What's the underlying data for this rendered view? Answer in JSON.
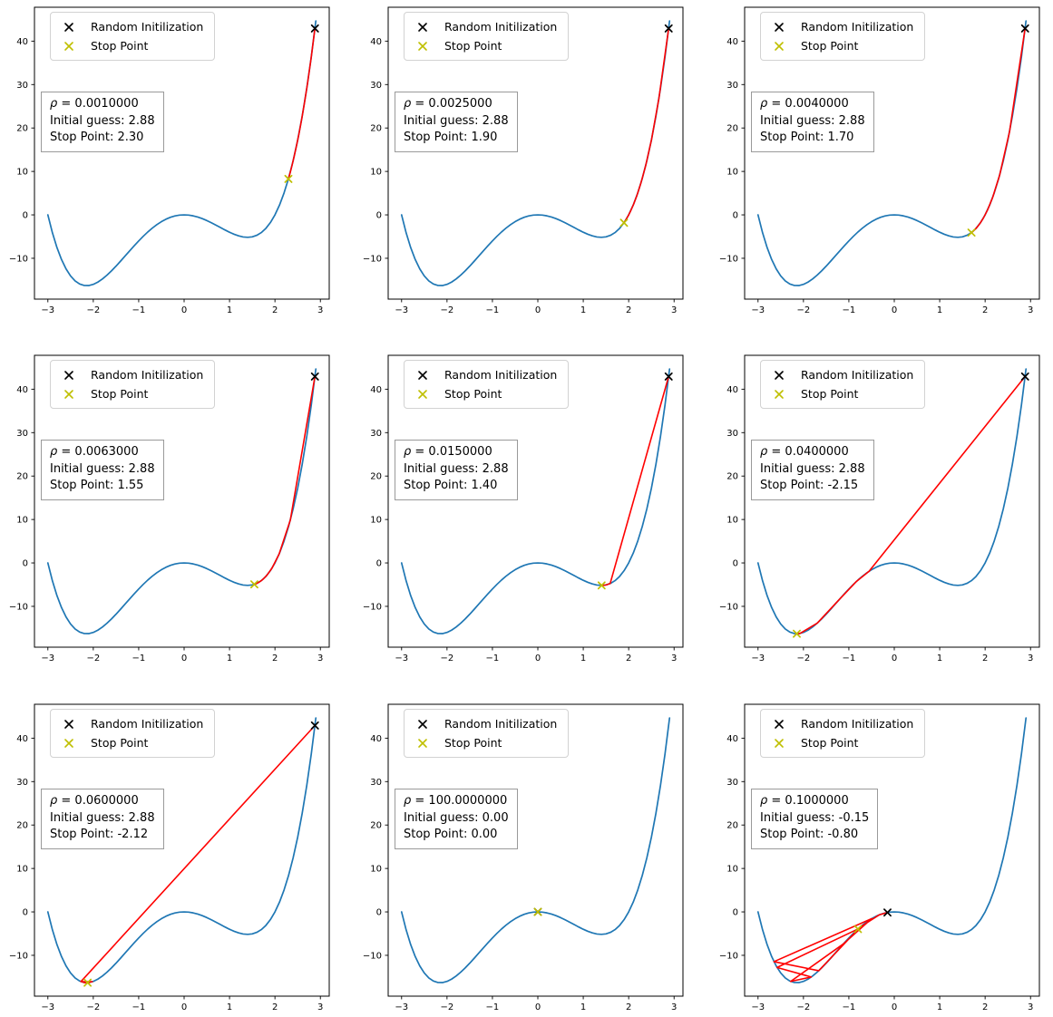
{
  "figure": {
    "background": "#ffffff"
  },
  "colors": {
    "curve": "#1f77b4",
    "descent_path": "#ff0000",
    "init_marker": "#000000",
    "stop_marker": "#bfbf00",
    "spine": "#000000",
    "tick_label": "#000000",
    "legend_border": "#d2d2d2",
    "annotation_border": "#9a9a9a"
  },
  "legend": {
    "items": [
      {
        "label": "Random Initilization",
        "marker": "x",
        "color": "#000000"
      },
      {
        "label": "Stop Point",
        "marker": "x",
        "color": "#bfbf00"
      }
    ]
  },
  "chart_data": {
    "type": "line",
    "layout": "3x3 subplots, identical axes",
    "function": "f(x) = x^4 + x^3 - 6x^2",
    "xlim": [
      -3.295,
      3.195
    ],
    "ylim": [
      -19.4,
      47.8
    ],
    "x_tick_values": [
      -3,
      -2,
      -1,
      0,
      1,
      2,
      3
    ],
    "x_tick_labels": [
      "−3",
      "−2",
      "−1",
      "0",
      "1",
      "2",
      "3"
    ],
    "y_tick_values": [
      -10,
      0,
      10,
      20,
      30,
      40
    ],
    "y_tick_labels": [
      "−10",
      "0",
      "10",
      "20",
      "30",
      "40"
    ],
    "curve_x": [
      -3,
      -2.9,
      -2.8,
      -2.7,
      -2.6,
      -2.5,
      -2.4,
      -2.3,
      -2.2,
      -2.1,
      -2,
      -1.9,
      -1.8,
      -1.7,
      -1.6,
      -1.5,
      -1.4,
      -1.3,
      -1.2,
      -1.1,
      -1,
      -0.9,
      -0.8,
      -0.7,
      -0.6,
      -0.5,
      -0.4,
      -0.3,
      -0.2,
      -0.1,
      0,
      0.1,
      0.2,
      0.3,
      0.4,
      0.5,
      0.6,
      0.7,
      0.8,
      0.9,
      1,
      1.1,
      1.2,
      1.3,
      1.4,
      1.5,
      1.6,
      1.7,
      1.8,
      1.9,
      2,
      2.1,
      2.2,
      2.3,
      2.4,
      2.5,
      2.6,
      2.7,
      2.8,
      2.9
    ],
    "curve_y": [
      0,
      -4.121,
      -7.526,
      -10.279,
      -12.438,
      -14.063,
      -15.206,
      -15.923,
      -16.262,
      -16.273,
      -16,
      -15.487,
      -14.774,
      -13.901,
      -12.902,
      -11.813,
      -10.662,
      -9.481,
      -8.294,
      -7.127,
      -6,
      -4.933,
      -3.942,
      -3.043,
      -2.246,
      -1.563,
      -0.998,
      -0.559,
      -0.246,
      -0.061,
      0,
      -0.059,
      -0.23,
      -0.505,
      -0.87,
      -1.313,
      -1.814,
      -2.357,
      -2.918,
      -3.475,
      -4,
      -4.465,
      -4.838,
      -5.087,
      -5.174,
      -5.063,
      -4.71,
      -4.075,
      -3.11,
      -1.769,
      0,
      2.249,
      5.034,
      8.411,
      12.442,
      17.188,
      22.714,
      29.087,
      36.378,
      44.657
    ],
    "plots": [
      {
        "rho": "0.0010000",
        "initial_guess": "2.88",
        "stop_point": "2.30",
        "annotation": {
          "rho_symbol": "ρ",
          "rho_rest": " = 0.0010000",
          "initial": "Initial guess: 2.88",
          "stop": "Stop Point: 2.30"
        },
        "path_x": [
          2.88,
          2.794,
          2.717,
          2.647,
          2.584,
          2.526,
          2.472,
          2.423,
          2.378,
          2.336,
          2.296
        ],
        "path_y": [
          42.92,
          35.921,
          30.254,
          25.613,
          21.757,
          18.531,
          15.802,
          13.482,
          11.488,
          9.768,
          8.276
        ],
        "init_xy": [
          2.88,
          42.92
        ],
        "stop_xy": [
          2.296,
          8.276
        ]
      },
      {
        "rho": "0.0025000",
        "initial_guess": "2.88",
        "stop_point": "1.90",
        "annotation": {
          "rho_symbol": "ρ",
          "rho_rest": " = 0.0025000",
          "initial": "Initial guess: 2.88",
          "stop": "Stop Point: 1.90"
        },
        "path_x": [
          2.88,
          2.665,
          2.503,
          2.374,
          2.269,
          2.182,
          2.108,
          2.044,
          1.989,
          1.94,
          1.897
        ],
        "path_y": [
          42.92,
          26.775,
          17.326,
          11.328,
          7.304,
          4.485,
          2.444,
          0.928,
          -0.225,
          -1.117,
          -1.817
        ],
        "init_xy": [
          2.88,
          42.92
        ],
        "stop_xy": [
          1.897,
          -1.817
        ]
      },
      {
        "rho": "0.0040000",
        "initial_guess": "2.88",
        "stop_point": "1.70",
        "annotation": {
          "rho_symbol": "ρ",
          "rho_rest": " = 0.0040000",
          "initial": "Initial guess: 2.88",
          "stop": "Stop Point: 1.70"
        },
        "path_x": [
          2.88,
          2.537,
          2.32,
          2.167,
          2.052,
          1.962,
          1.889,
          1.829,
          1.779,
          1.736,
          1.7
        ],
        "path_y": [
          42.92,
          19.11,
          9.16,
          4.049,
          1.1,
          -0.735,
          -1.941,
          -2.764,
          -3.347,
          -3.768,
          -4.079
        ],
        "init_xy": [
          2.88,
          42.92
        ],
        "stop_xy": [
          1.7,
          -4.079
        ]
      },
      {
        "rho": "0.0063000",
        "initial_guess": "2.88",
        "stop_point": "1.55",
        "annotation": {
          "rho_symbol": "ρ",
          "rho_rest": " = 0.0063000",
          "initial": "Initial guess: 2.88",
          "stop": "Stop Point: 1.55"
        },
        "path_x": [
          2.88,
          2.339,
          2.09,
          1.935,
          1.828,
          1.749,
          1.689,
          1.641,
          1.603,
          1.572,
          1.546
        ],
        "path_y": [
          42.92,
          9.902,
          2.0,
          -1.194,
          -2.772,
          -3.644,
          -4.162,
          -4.485,
          -4.697,
          -4.837,
          -4.933
        ],
        "init_xy": [
          2.88,
          42.92
        ],
        "stop_xy": [
          1.546,
          -4.933
        ]
      },
      {
        "rho": "0.0150000",
        "initial_guess": "2.88",
        "stop_point": "1.40",
        "annotation": {
          "rho_symbol": "ρ",
          "rho_rest": " = 0.0150000",
          "initial": "Initial guess: 2.88",
          "stop": "Stop Point: 1.40"
        },
        "path_x": [
          2.88,
          1.592,
          1.522,
          1.481,
          1.454,
          1.436,
          1.424,
          1.416,
          1.41,
          1.406,
          1.404
        ],
        "path_y": [
          42.92,
          -4.748,
          -5.007,
          -5.102,
          -5.141,
          -5.16,
          -5.167,
          -5.171,
          -5.173,
          -5.174,
          -5.175
        ],
        "init_xy": [
          2.88,
          42.92
        ],
        "stop_xy": [
          1.404,
          -5.175
        ]
      },
      {
        "rho": "0.0400000",
        "initial_guess": "2.88",
        "stop_point": "-2.15",
        "annotation": {
          "rho_symbol": "ρ",
          "rho_rest": " = 0.0400000",
          "initial": "Initial guess: 2.88",
          "stop": "Stop Point: -2.15"
        },
        "path_x": [
          2.88,
          -0.555,
          -0.831,
          -1.221,
          -1.695,
          -2.074,
          -2.159,
          -2.144,
          -2.148,
          -2.146,
          -2.147
        ],
        "path_y": [
          42.92,
          -1.924,
          -4.24,
          -8.543,
          -13.853,
          -16.227,
          -16.304,
          -16.306,
          -16.306,
          -16.306,
          -16.306
        ],
        "init_xy": [
          2.88,
          42.92
        ],
        "stop_xy": [
          -2.147,
          -16.306
        ]
      },
      {
        "rho": "0.0600000",
        "initial_guess": "2.88",
        "stop_point": "-2.12",
        "annotation": {
          "rho_symbol": "ρ",
          "rho_rest": " = 0.0600000",
          "initial": "Initial guess: 2.88",
          "stop": "Stop Point: -2.12"
        },
        "path_x": [
          2.88,
          -2.272,
          -2.022,
          -2.229,
          -2.07,
          -2.203,
          -2.097,
          -2.185,
          -2.114,
          -2.173,
          -2.125
        ],
        "path_y": [
          42.92,
          -16.054,
          -16.084,
          -16.199,
          -16.219,
          -16.257,
          -16.268,
          -16.284,
          -16.289,
          -16.295,
          -16.298
        ],
        "init_xy": [
          2.88,
          42.92
        ],
        "stop_xy": [
          -2.125,
          -16.298
        ]
      },
      {
        "rho": "100.0000000",
        "initial_guess": "0.00",
        "stop_point": "0.00",
        "annotation": {
          "rho_symbol": "ρ",
          "rho_rest": " = 100.0000000",
          "initial": "Initial guess: 0.00",
          "stop": "Stop Point: 0.00"
        },
        "path_x": [
          0,
          0
        ],
        "path_y": [
          0,
          0
        ],
        "init_xy": [
          0,
          0
        ],
        "stop_xy": [
          0,
          0
        ]
      },
      {
        "rho": "0.1000000",
        "initial_guess": "-0.15",
        "stop_point": "-0.80",
        "annotation": {
          "rho_symbol": "ρ",
          "rho_rest": " = 0.1000000",
          "initial": "Initial guess: -0.15",
          "stop": "Stop Point: -0.80"
        },
        "path_x": [
          -0.15,
          -0.335,
          -0.757,
          -1.663,
          -2.649,
          -0.499,
          -1.123,
          -2.282,
          -1.828,
          -2.581,
          -0.8
        ],
        "path_y": [
          -0.138,
          -0.7,
          -3.54,
          -13.543,
          -11.458,
          -1.557,
          -7.392,
          -16.006,
          -14.989,
          -12.793,
          -3.947
        ],
        "init_xy": [
          -0.15,
          -0.138
        ],
        "stop_xy": [
          -0.8,
          -3.947
        ]
      }
    ]
  }
}
